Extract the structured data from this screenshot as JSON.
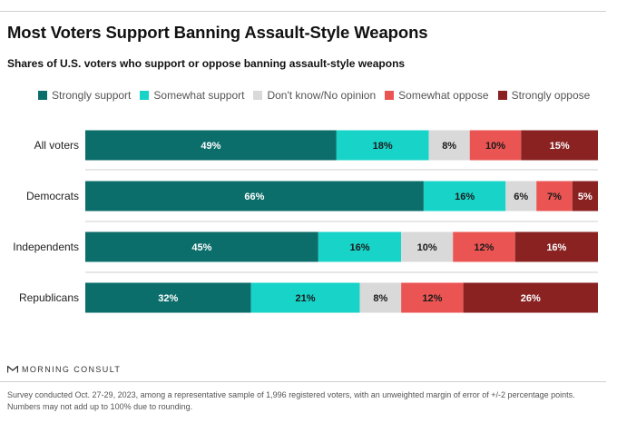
{
  "title": "Most Voters Support Banning Assault-Style Weapons",
  "subtitle": "Shares of U.S. voters who support or oppose banning assault-style weapons",
  "brand": "MORNING CONSULT",
  "footnote": "Survey conducted Oct. 27-29, 2023, among a representative sample of 1,996 registered voters, with an unweighted margin of error of +/-2 percentage points. Numbers may not add up to 100% due to rounding.",
  "colors": {
    "strongly_support": "#0b6e6b",
    "somewhat_support": "#18d3c8",
    "no_opinion": "#d9d9d9",
    "somewhat_oppose": "#ea5553",
    "strongly_oppose": "#8b2222"
  },
  "chart_data": {
    "type": "bar",
    "orientation": "horizontal",
    "stacked": true,
    "title": "Most Voters Support Banning Assault-Style Weapons",
    "subtitle": "Shares of U.S. voters who support or oppose banning assault-style weapons",
    "categories": [
      "All voters",
      "Democrats",
      "Independents",
      "Republicans"
    ],
    "series": [
      {
        "name": "Strongly support",
        "color": "#0b6e6b",
        "values": [
          49,
          66,
          45,
          32
        ]
      },
      {
        "name": "Somewhat support",
        "color": "#18d3c8",
        "values": [
          18,
          16,
          16,
          21
        ]
      },
      {
        "name": "Don't know/No opinion",
        "color": "#d9d9d9",
        "values": [
          8,
          6,
          10,
          8
        ]
      },
      {
        "name": "Somewhat oppose",
        "color": "#ea5553",
        "values": [
          10,
          7,
          12,
          12
        ]
      },
      {
        "name": "Strongly oppose",
        "color": "#8b2222",
        "values": [
          15,
          5,
          16,
          26
        ]
      }
    ],
    "value_suffix": "%",
    "legend_position": "top",
    "xlabel": "",
    "ylabel": ""
  }
}
